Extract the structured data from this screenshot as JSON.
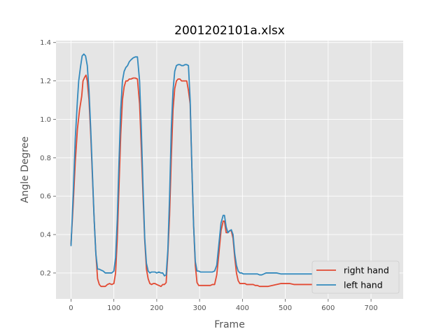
{
  "chart_data": {
    "type": "line",
    "title": "2001202101a.xlsx",
    "xlabel": "Frame",
    "ylabel": "Angle Degree",
    "xlim": [
      -35,
      775
    ],
    "ylim": [
      0.065,
      1.41
    ],
    "xticks": [
      0,
      100,
      200,
      300,
      400,
      500,
      600,
      700
    ],
    "yticks": [
      0.2,
      0.4,
      0.6,
      0.8,
      1.0,
      1.2,
      1.4
    ],
    "xtick_labels": [
      "0",
      "100",
      "200",
      "300",
      "400",
      "500",
      "600",
      "700"
    ],
    "ytick_labels": [
      "0.2",
      "0.4",
      "0.6",
      "0.8",
      "1.0",
      "1.2",
      "1.4"
    ],
    "grid": true,
    "legend_position": "lower-right",
    "colors": {
      "background": "#e5e5e5",
      "grid": "#ffffff",
      "right_hand": "#e24a33",
      "left_hand": "#348abd"
    },
    "series": [
      {
        "name": "right hand",
        "color": "#e24a33",
        "points": [
          [
            0,
            0.35
          ],
          [
            5,
            0.55
          ],
          [
            10,
            0.78
          ],
          [
            15,
            0.95
          ],
          [
            20,
            1.05
          ],
          [
            25,
            1.12
          ],
          [
            28,
            1.2
          ],
          [
            32,
            1.22
          ],
          [
            35,
            1.23
          ],
          [
            38,
            1.2
          ],
          [
            42,
            1.1
          ],
          [
            46,
            0.92
          ],
          [
            50,
            0.7
          ],
          [
            54,
            0.48
          ],
          [
            58,
            0.3
          ],
          [
            62,
            0.17
          ],
          [
            66,
            0.14
          ],
          [
            70,
            0.13
          ],
          [
            75,
            0.13
          ],
          [
            80,
            0.13
          ],
          [
            85,
            0.14
          ],
          [
            90,
            0.145
          ],
          [
            95,
            0.14
          ],
          [
            100,
            0.145
          ],
          [
            104,
            0.2
          ],
          [
            108,
            0.38
          ],
          [
            112,
            0.65
          ],
          [
            116,
            0.92
          ],
          [
            120,
            1.1
          ],
          [
            124,
            1.17
          ],
          [
            128,
            1.2
          ],
          [
            132,
            1.2
          ],
          [
            136,
            1.21
          ],
          [
            140,
            1.21
          ],
          [
            145,
            1.215
          ],
          [
            150,
            1.215
          ],
          [
            155,
            1.21
          ],
          [
            160,
            1.08
          ],
          [
            164,
            0.85
          ],
          [
            168,
            0.6
          ],
          [
            172,
            0.37
          ],
          [
            176,
            0.22
          ],
          [
            180,
            0.17
          ],
          [
            184,
            0.145
          ],
          [
            188,
            0.14
          ],
          [
            192,
            0.145
          ],
          [
            196,
            0.145
          ],
          [
            200,
            0.14
          ],
          [
            205,
            0.135
          ],
          [
            210,
            0.13
          ],
          [
            214,
            0.14
          ],
          [
            218,
            0.14
          ],
          [
            222,
            0.15
          ],
          [
            226,
            0.3
          ],
          [
            230,
            0.5
          ],
          [
            234,
            0.8
          ],
          [
            238,
            1.05
          ],
          [
            242,
            1.16
          ],
          [
            246,
            1.2
          ],
          [
            250,
            1.21
          ],
          [
            254,
            1.21
          ],
          [
            258,
            1.2
          ],
          [
            262,
            1.2
          ],
          [
            266,
            1.2
          ],
          [
            270,
            1.2
          ],
          [
            274,
            1.15
          ],
          [
            278,
            1.08
          ],
          [
            282,
            0.75
          ],
          [
            286,
            0.45
          ],
          [
            290,
            0.24
          ],
          [
            294,
            0.15
          ],
          [
            298,
            0.135
          ],
          [
            302,
            0.135
          ],
          [
            306,
            0.135
          ],
          [
            310,
            0.135
          ],
          [
            315,
            0.135
          ],
          [
            320,
            0.135
          ],
          [
            325,
            0.135
          ],
          [
            330,
            0.14
          ],
          [
            335,
            0.14
          ],
          [
            340,
            0.19
          ],
          [
            345,
            0.3
          ],
          [
            350,
            0.42
          ],
          [
            355,
            0.47
          ],
          [
            358,
            0.47
          ],
          [
            362,
            0.41
          ],
          [
            366,
            0.41
          ],
          [
            370,
            0.42
          ],
          [
            374,
            0.42
          ],
          [
            378,
            0.38
          ],
          [
            382,
            0.28
          ],
          [
            386,
            0.2
          ],
          [
            390,
            0.16
          ],
          [
            394,
            0.145
          ],
          [
            398,
            0.145
          ],
          [
            402,
            0.145
          ],
          [
            406,
            0.145
          ],
          [
            410,
            0.14
          ],
          [
            415,
            0.14
          ],
          [
            420,
            0.14
          ],
          [
            425,
            0.14
          ],
          [
            430,
            0.135
          ],
          [
            435,
            0.135
          ],
          [
            440,
            0.13
          ],
          [
            445,
            0.13
          ],
          [
            450,
            0.13
          ],
          [
            455,
            0.13
          ],
          [
            460,
            0.13
          ],
          [
            470,
            0.135
          ],
          [
            480,
            0.14
          ],
          [
            490,
            0.145
          ],
          [
            500,
            0.145
          ],
          [
            510,
            0.145
          ],
          [
            520,
            0.14
          ],
          [
            530,
            0.14
          ],
          [
            540,
            0.14
          ],
          [
            550,
            0.14
          ],
          [
            560,
            0.14
          ],
          [
            570,
            0.14
          ],
          [
            580,
            0.14
          ],
          [
            590,
            0.14
          ]
        ]
      },
      {
        "name": "left hand",
        "color": "#348abd",
        "points": [
          [
            0,
            0.34
          ],
          [
            5,
            0.6
          ],
          [
            10,
            0.9
          ],
          [
            15,
            1.1
          ],
          [
            18,
            1.2
          ],
          [
            22,
            1.27
          ],
          [
            26,
            1.33
          ],
          [
            30,
            1.34
          ],
          [
            34,
            1.33
          ],
          [
            38,
            1.28
          ],
          [
            42,
            1.15
          ],
          [
            46,
            0.95
          ],
          [
            50,
            0.72
          ],
          [
            54,
            0.48
          ],
          [
            58,
            0.3
          ],
          [
            62,
            0.22
          ],
          [
            66,
            0.22
          ],
          [
            70,
            0.215
          ],
          [
            75,
            0.21
          ],
          [
            80,
            0.2
          ],
          [
            85,
            0.2
          ],
          [
            90,
            0.2
          ],
          [
            95,
            0.2
          ],
          [
            100,
            0.21
          ],
          [
            104,
            0.28
          ],
          [
            108,
            0.48
          ],
          [
            112,
            0.78
          ],
          [
            116,
            1.05
          ],
          [
            120,
            1.2
          ],
          [
            124,
            1.25
          ],
          [
            128,
            1.27
          ],
          [
            132,
            1.28
          ],
          [
            136,
            1.3
          ],
          [
            140,
            1.31
          ],
          [
            145,
            1.32
          ],
          [
            150,
            1.325
          ],
          [
            155,
            1.325
          ],
          [
            160,
            1.2
          ],
          [
            164,
            0.95
          ],
          [
            168,
            0.65
          ],
          [
            172,
            0.38
          ],
          [
            176,
            0.25
          ],
          [
            180,
            0.21
          ],
          [
            184,
            0.2
          ],
          [
            188,
            0.205
          ],
          [
            192,
            0.205
          ],
          [
            196,
            0.205
          ],
          [
            200,
            0.2
          ],
          [
            205,
            0.205
          ],
          [
            210,
            0.2
          ],
          [
            214,
            0.2
          ],
          [
            218,
            0.185
          ],
          [
            222,
            0.19
          ],
          [
            226,
            0.32
          ],
          [
            230,
            0.6
          ],
          [
            234,
            0.95
          ],
          [
            238,
            1.15
          ],
          [
            242,
            1.25
          ],
          [
            246,
            1.28
          ],
          [
            250,
            1.285
          ],
          [
            254,
            1.285
          ],
          [
            258,
            1.28
          ],
          [
            262,
            1.28
          ],
          [
            266,
            1.285
          ],
          [
            270,
            1.285
          ],
          [
            274,
            1.28
          ],
          [
            278,
            1.1
          ],
          [
            282,
            0.75
          ],
          [
            286,
            0.45
          ],
          [
            290,
            0.26
          ],
          [
            294,
            0.21
          ],
          [
            298,
            0.21
          ],
          [
            302,
            0.205
          ],
          [
            306,
            0.205
          ],
          [
            310,
            0.205
          ],
          [
            315,
            0.205
          ],
          [
            320,
            0.205
          ],
          [
            325,
            0.205
          ],
          [
            330,
            0.205
          ],
          [
            335,
            0.21
          ],
          [
            340,
            0.24
          ],
          [
            345,
            0.35
          ],
          [
            350,
            0.46
          ],
          [
            355,
            0.5
          ],
          [
            358,
            0.5
          ],
          [
            362,
            0.44
          ],
          [
            366,
            0.41
          ],
          [
            370,
            0.42
          ],
          [
            374,
            0.425
          ],
          [
            378,
            0.4
          ],
          [
            382,
            0.3
          ],
          [
            386,
            0.24
          ],
          [
            390,
            0.21
          ],
          [
            394,
            0.2
          ],
          [
            398,
            0.2
          ],
          [
            402,
            0.195
          ],
          [
            406,
            0.195
          ],
          [
            410,
            0.195
          ],
          [
            415,
            0.195
          ],
          [
            420,
            0.195
          ],
          [
            425,
            0.195
          ],
          [
            430,
            0.195
          ],
          [
            435,
            0.195
          ],
          [
            440,
            0.19
          ],
          [
            445,
            0.19
          ],
          [
            450,
            0.195
          ],
          [
            455,
            0.2
          ],
          [
            460,
            0.2
          ],
          [
            470,
            0.2
          ],
          [
            480,
            0.2
          ],
          [
            490,
            0.195
          ],
          [
            500,
            0.195
          ],
          [
            510,
            0.195
          ],
          [
            520,
            0.195
          ],
          [
            530,
            0.195
          ],
          [
            540,
            0.195
          ],
          [
            550,
            0.195
          ],
          [
            560,
            0.195
          ],
          [
            570,
            0.195
          ],
          [
            580,
            0.195
          ],
          [
            590,
            0.195
          ]
        ]
      }
    ]
  }
}
